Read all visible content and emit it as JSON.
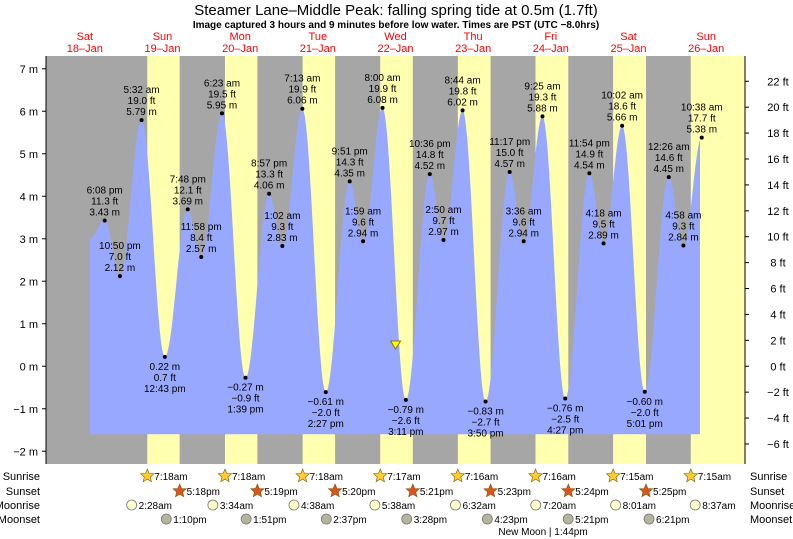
{
  "header": {
    "title": "Steamer Lane–Middle Peak: falling  spring tide at 0.5m (1.7ft)",
    "subtitle": "Image captured 3 hours and 9 minutes before low water. Times are PST (UTC −8.0hrs)"
  },
  "chart_data": {
    "type": "area",
    "ylim_m": [
      -2.3,
      7.3
    ],
    "y_ticks_m": [
      "−2 m",
      "−1 m",
      "0 m",
      "1 m",
      "2 m",
      "3 m",
      "4 m",
      "5 m",
      "6 m",
      "7 m"
    ],
    "y_ticks_ft": [
      "−6 ft",
      "−4 ft",
      "−2 ft",
      "0 ft",
      "2 ft",
      "4 ft",
      "6 ft",
      "8 ft",
      "10 ft",
      "12 ft",
      "14 ft",
      "16 ft",
      "18 ft",
      "20 ft",
      "22 ft"
    ],
    "x_start": "2020-01-18T00:00",
    "x_end": "2020-01-27T00:00",
    "days": [
      {
        "dow": "Sat",
        "date": "18–Jan"
      },
      {
        "dow": "Sun",
        "date": "19–Jan"
      },
      {
        "dow": "Mon",
        "date": "20–Jan"
      },
      {
        "dow": "Tue",
        "date": "21–Jan"
      },
      {
        "dow": "Wed",
        "date": "22–Jan"
      },
      {
        "dow": "Thu",
        "date": "23–Jan"
      },
      {
        "dow": "Fri",
        "date": "24–Jan"
      },
      {
        "dow": "Sat",
        "date": "25–Jan"
      },
      {
        "dow": "Sun",
        "date": "26–Jan"
      }
    ],
    "tides": [
      {
        "t": "2020-01-18T18:08",
        "m": 3.43,
        "time": "6:08 pm",
        "ft": "11.3 ft",
        "mt": "3.43 m"
      },
      {
        "t": "2020-01-18T22:50",
        "m": 2.12,
        "time": "10:50 pm",
        "ft": "7.0 ft",
        "mt": "2.12 m"
      },
      {
        "t": "2020-01-19T05:32",
        "m": 5.79,
        "time": "5:32 am",
        "ft": "19.0 ft",
        "mt": "5.79 m"
      },
      {
        "t": "2020-01-19T12:43",
        "m": 0.22,
        "time": "12:43 pm",
        "ft": "0.7 ft",
        "mt": "0.22 m"
      },
      {
        "t": "2020-01-19T19:48",
        "m": 3.69,
        "time": "7:48 pm",
        "ft": "12.1 ft",
        "mt": "3.69 m"
      },
      {
        "t": "2020-01-19T23:58",
        "m": 2.57,
        "time": "11:58 pm",
        "ft": "8.4 ft",
        "mt": "2.57 m"
      },
      {
        "t": "2020-01-20T06:23",
        "m": 5.95,
        "time": "6:23 am",
        "ft": "19.5 ft",
        "mt": "5.95 m"
      },
      {
        "t": "2020-01-20T13:39",
        "m": -0.27,
        "time": "1:39 pm",
        "ft": "−0.9 ft",
        "mt": "−0.27 m"
      },
      {
        "t": "2020-01-20T20:57",
        "m": 4.06,
        "time": "8:57 pm",
        "ft": "13.3 ft",
        "mt": "4.06 m"
      },
      {
        "t": "2020-01-21T01:02",
        "m": 2.83,
        "time": "1:02 am",
        "ft": "9.3 ft",
        "mt": "2.83 m"
      },
      {
        "t": "2020-01-21T07:13",
        "m": 6.06,
        "time": "7:13 am",
        "ft": "19.9 ft",
        "mt": "6.06 m"
      },
      {
        "t": "2020-01-21T14:27",
        "m": -0.61,
        "time": "2:27 pm",
        "ft": "−2.0 ft",
        "mt": "−0.61 m"
      },
      {
        "t": "2020-01-21T21:51",
        "m": 4.35,
        "time": "9:51 pm",
        "ft": "14.3 ft",
        "mt": "4.35 m"
      },
      {
        "t": "2020-01-22T01:59",
        "m": 2.94,
        "time": "1:59 am",
        "ft": "9.6 ft",
        "mt": "2.94 m"
      },
      {
        "t": "2020-01-22T08:00",
        "m": 6.08,
        "time": "8:00 am",
        "ft": "19.9 ft",
        "mt": "6.08 m"
      },
      {
        "t": "2020-01-22T15:11",
        "m": -0.79,
        "time": "3:11 pm",
        "ft": "−2.6 ft",
        "mt": "−0.79 m"
      },
      {
        "t": "2020-01-22T22:36",
        "m": 4.52,
        "time": "10:36 pm",
        "ft": "14.8 ft",
        "mt": "4.52 m"
      },
      {
        "t": "2020-01-23T02:50",
        "m": 2.97,
        "time": "2:50 am",
        "ft": "9.7 ft",
        "mt": "2.97 m"
      },
      {
        "t": "2020-01-23T08:44",
        "m": 6.02,
        "time": "8:44 am",
        "ft": "19.8 ft",
        "mt": "6.02 m"
      },
      {
        "t": "2020-01-23T15:50",
        "m": -0.83,
        "time": "3:50 pm",
        "ft": "−2.7 ft",
        "mt": "−0.83 m"
      },
      {
        "t": "2020-01-23T23:17",
        "m": 4.57,
        "time": "11:17 pm",
        "ft": "15.0 ft",
        "mt": "4.57 m"
      },
      {
        "t": "2020-01-24T03:36",
        "m": 2.94,
        "time": "3:36 am",
        "ft": "9.6 ft",
        "mt": "2.94 m"
      },
      {
        "t": "2020-01-24T09:25",
        "m": 5.88,
        "time": "9:25 am",
        "ft": "19.3 ft",
        "mt": "5.88 m"
      },
      {
        "t": "2020-01-24T16:27",
        "m": -0.76,
        "time": "4:27 pm",
        "ft": "−2.5 ft",
        "mt": "−0.76 m"
      },
      {
        "t": "2020-01-24T23:54",
        "m": 4.54,
        "time": "11:54 pm",
        "ft": "14.9 ft",
        "mt": "4.54 m"
      },
      {
        "t": "2020-01-25T04:18",
        "m": 2.89,
        "time": "4:18 am",
        "ft": "9.5 ft",
        "mt": "2.89 m"
      },
      {
        "t": "2020-01-25T10:02",
        "m": 5.66,
        "time": "10:02 am",
        "ft": "18.6 ft",
        "mt": "5.66 m"
      },
      {
        "t": "2020-01-25T17:01",
        "m": -0.6,
        "time": "5:01 pm",
        "ft": "−2.0 ft",
        "mt": "−0.60 m"
      },
      {
        "t": "2020-01-26T00:26",
        "m": 4.45,
        "time": "12:26 am",
        "ft": "14.6 ft",
        "mt": "4.45 m"
      },
      {
        "t": "2020-01-26T04:58",
        "m": 2.84,
        "time": "4:58 am",
        "ft": "9.3 ft",
        "mt": "2.84 m"
      },
      {
        "t": "2020-01-26T10:38",
        "m": 5.38,
        "time": "10:38 am",
        "ft": "17.7 ft",
        "mt": "5.38 m"
      }
    ],
    "current": {
      "t": "2020-01-22T12:02",
      "m": 0.5
    },
    "sunrise": [
      "7:18am",
      "7:18am",
      "7:18am",
      "7:17am",
      "7:16am",
      "7:16am",
      "7:15am",
      "7:15am"
    ],
    "sunset": [
      "5:18pm",
      "5:19pm",
      "5:20pm",
      "5:21pm",
      "5:23pm",
      "5:24pm",
      "5:25pm"
    ],
    "moonrise": [
      "2:28am",
      "3:34am",
      "4:38am",
      "5:38am",
      "6:32am",
      "7:20am",
      "8:01am",
      "8:37am"
    ],
    "moonset": [
      "1:10pm",
      "1:51pm",
      "2:37pm",
      "3:28pm",
      "4:23pm",
      "5:21pm",
      "6:21pm"
    ],
    "new_moon": "New Moon | 1:44pm"
  },
  "legend_rows": [
    "Sunrise",
    "Sunset",
    "Moonrise",
    "Moonset"
  ],
  "colors": {
    "night": "#a6a6a6",
    "day": "#ffffb0",
    "water": "#99a8ff",
    "day_label": "#ff0000",
    "sun_fill": "#ffcc33",
    "sunset_fill": "#e05020",
    "moonrise_fill": "#ffffcc",
    "moonset_fill": "#b4b4a0"
  }
}
